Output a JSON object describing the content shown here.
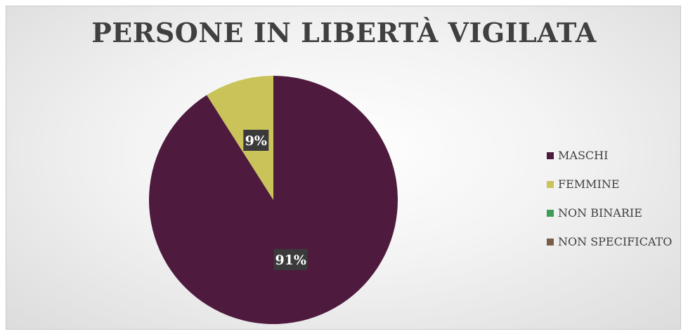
{
  "chart_data": {
    "type": "pie",
    "title": "PERSONE IN LIBERTÀ VIGILATA",
    "slices": [
      {
        "label": "MASCHI",
        "value": 91,
        "display": "91%",
        "color": "#4e1a3e"
      },
      {
        "label": "FEMMINE",
        "value": 9,
        "display": "9%",
        "color": "#c9c35a"
      },
      {
        "label": "NON BINARIE",
        "value": 0,
        "display": "",
        "color": "#3f9c57"
      },
      {
        "label": "NON SPECIFICATO",
        "value": 0,
        "display": "",
        "color": "#7b5e4a"
      }
    ],
    "legend_position": "right",
    "start_angle": "12 o'clock, clockwise"
  }
}
